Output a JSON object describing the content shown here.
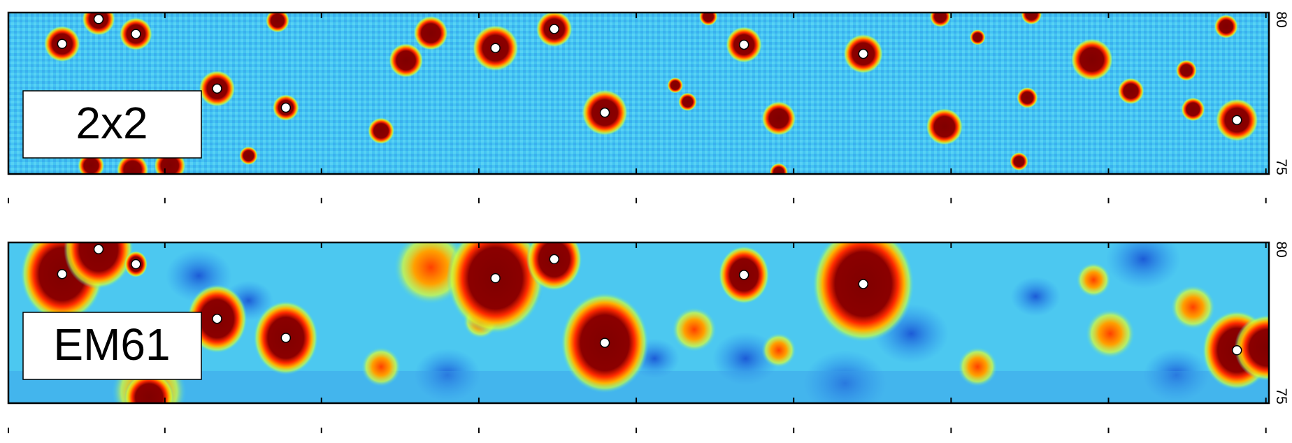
{
  "panels": [
    {
      "label": "2x2",
      "yticks": [
        80,
        75
      ]
    },
    {
      "label": "EM61",
      "yticks": [
        80,
        75
      ]
    }
  ]
}
